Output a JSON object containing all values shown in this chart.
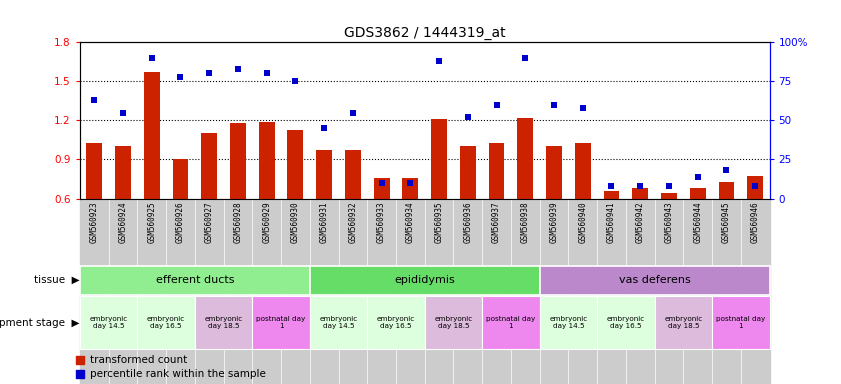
{
  "title": "GDS3862 / 1444319_at",
  "samples": [
    "GSM560923",
    "GSM560924",
    "GSM560925",
    "GSM560926",
    "GSM560927",
    "GSM560928",
    "GSM560929",
    "GSM560930",
    "GSM560931",
    "GSM560932",
    "GSM560933",
    "GSM560934",
    "GSM560935",
    "GSM560936",
    "GSM560937",
    "GSM560938",
    "GSM560939",
    "GSM560940",
    "GSM560941",
    "GSM560942",
    "GSM560943",
    "GSM560944",
    "GSM560945",
    "GSM560946"
  ],
  "transformed_count": [
    1.03,
    1.0,
    1.57,
    0.9,
    1.1,
    1.18,
    1.19,
    1.13,
    0.97,
    0.97,
    0.76,
    0.76,
    1.21,
    1.0,
    1.03,
    1.22,
    1.0,
    1.03,
    0.66,
    0.68,
    0.64,
    0.68,
    0.73,
    0.77
  ],
  "percentile_rank": [
    63,
    55,
    90,
    78,
    80,
    83,
    80,
    75,
    45,
    55,
    10,
    10,
    88,
    52,
    60,
    90,
    60,
    58,
    8,
    8,
    8,
    14,
    18,
    8
  ],
  "ylim_left": [
    0.6,
    1.8
  ],
  "ylim_right": [
    0,
    100
  ],
  "yticks_left": [
    0.6,
    0.9,
    1.2,
    1.5,
    1.8
  ],
  "yticks_right": [
    0,
    25,
    50,
    75,
    100
  ],
  "bar_color": "#CC2200",
  "scatter_color": "#0000CC",
  "tissue_groups": [
    {
      "label": "efferent ducts",
      "start": 0,
      "end": 7,
      "color": "#90EE90"
    },
    {
      "label": "epididymis",
      "start": 8,
      "end": 15,
      "color": "#66DD66"
    },
    {
      "label": "vas deferens",
      "start": 16,
      "end": 23,
      "color": "#BB88CC"
    }
  ],
  "dev_stage_groups": [
    {
      "label": "embryonic\nday 14.5",
      "start": 0,
      "end": 1,
      "color": "#DDFFDD"
    },
    {
      "label": "embryonic\nday 16.5",
      "start": 2,
      "end": 3,
      "color": "#DDFFDD"
    },
    {
      "label": "embryonic\nday 18.5",
      "start": 4,
      "end": 5,
      "color": "#DDBBDD"
    },
    {
      "label": "postnatal day\n1",
      "start": 6,
      "end": 7,
      "color": "#EE88EE"
    },
    {
      "label": "embryonic\nday 14.5",
      "start": 8,
      "end": 9,
      "color": "#DDFFDD"
    },
    {
      "label": "embryonic\nday 16.5",
      "start": 10,
      "end": 11,
      "color": "#DDFFDD"
    },
    {
      "label": "embryonic\nday 18.5",
      "start": 12,
      "end": 13,
      "color": "#DDBBDD"
    },
    {
      "label": "postnatal day\n1",
      "start": 14,
      "end": 15,
      "color": "#EE88EE"
    },
    {
      "label": "embryonic\nday 14.5",
      "start": 16,
      "end": 17,
      "color": "#DDFFDD"
    },
    {
      "label": "embryonic\nday 16.5",
      "start": 18,
      "end": 19,
      "color": "#DDFFDD"
    },
    {
      "label": "embryonic\nday 18.5",
      "start": 20,
      "end": 21,
      "color": "#DDBBDD"
    },
    {
      "label": "postnatal day\n1",
      "start": 22,
      "end": 23,
      "color": "#EE88EE"
    }
  ],
  "label_tissue": "tissue",
  "label_devstage": "development stage",
  "legend_bar": "transformed count",
  "legend_scatter": "percentile rank within the sample",
  "bar_color_legend": "#CC2200",
  "scatter_color_legend": "#0000CC",
  "sample_bg_color": "#CCCCCC",
  "right_ytick_labels": [
    "0",
    "25",
    "50",
    "75",
    "100%"
  ]
}
